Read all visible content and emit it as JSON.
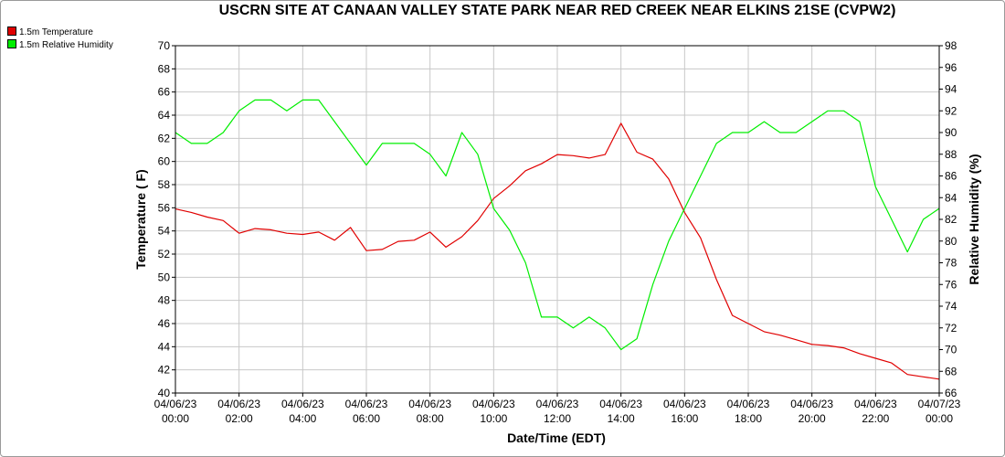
{
  "chart_data": {
    "type": "line",
    "title": "USCRN SITE AT CANAAN VALLEY STATE PARK NEAR RED CREEK NEAR ELKINS 21SE (CVPW2)",
    "xlabel": "Date/Time (EDT)",
    "ylabel_left": "Temperature ( F)",
    "ylabel_right": "Relative Humidity (%)",
    "xlim_hours": [
      0,
      24
    ],
    "x_ticks": [
      {
        "date": "04/06/23",
        "time": "00:00"
      },
      {
        "date": "04/06/23",
        "time": "02:00"
      },
      {
        "date": "04/06/23",
        "time": "04:00"
      },
      {
        "date": "04/06/23",
        "time": "06:00"
      },
      {
        "date": "04/06/23",
        "time": "08:00"
      },
      {
        "date": "04/06/23",
        "time": "10:00"
      },
      {
        "date": "04/06/23",
        "time": "12:00"
      },
      {
        "date": "04/06/23",
        "time": "14:00"
      },
      {
        "date": "04/06/23",
        "time": "16:00"
      },
      {
        "date": "04/06/23",
        "time": "18:00"
      },
      {
        "date": "04/06/23",
        "time": "20:00"
      },
      {
        "date": "04/06/23",
        "time": "22:00"
      },
      {
        "date": "04/07/23",
        "time": "00:00"
      }
    ],
    "ylim_left": [
      40,
      70
    ],
    "yticks_left": [
      "40",
      "42",
      "44",
      "46",
      "48",
      "50",
      "52",
      "54",
      "56",
      "58",
      "60",
      "62",
      "64",
      "66",
      "68",
      "70"
    ],
    "ylim_right": [
      66,
      98
    ],
    "yticks_right": [
      "66",
      "68",
      "70",
      "72",
      "74",
      "76",
      "78",
      "80",
      "82",
      "84",
      "86",
      "88",
      "90",
      "92",
      "94",
      "96",
      "98"
    ],
    "grid": true,
    "legend_position": "top-left",
    "series": [
      {
        "name": "1.5m Temperature",
        "axis": "left",
        "color": "#e00000",
        "x": [
          "00:00",
          "00:30",
          "01:00",
          "01:30",
          "02:00",
          "02:30",
          "03:00",
          "03:30",
          "04:00",
          "04:30",
          "05:00",
          "05:30",
          "06:00",
          "06:30",
          "07:00",
          "07:30",
          "08:00",
          "08:30",
          "09:00",
          "09:30",
          "10:00",
          "10:30",
          "11:00",
          "11:30",
          "12:00",
          "12:30",
          "13:00",
          "13:30",
          "14:00",
          "14:30",
          "15:00",
          "15:30",
          "16:00",
          "16:30",
          "17:00",
          "17:30",
          "18:00",
          "18:30",
          "19:00",
          "19:30",
          "20:00",
          "20:30",
          "21:00",
          "21:30",
          "22:00",
          "22:30",
          "23:00",
          "23:30",
          "24:00"
        ],
        "values": [
          55.9,
          55.6,
          55.2,
          54.9,
          53.8,
          54.2,
          54.1,
          53.8,
          53.7,
          53.9,
          53.2,
          54.3,
          52.3,
          52.4,
          53.1,
          53.2,
          53.9,
          52.6,
          53.5,
          54.9,
          56.8,
          57.9,
          59.2,
          59.8,
          60.6,
          60.5,
          60.3,
          60.6,
          63.3,
          60.8,
          60.2,
          58.5,
          55.6,
          53.4,
          49.8,
          46.7,
          46.0,
          45.3,
          45.0,
          44.6,
          44.2,
          44.1,
          43.9,
          43.4,
          43.0,
          42.6,
          41.6,
          41.4,
          41.2
        ]
      },
      {
        "name": "1.5m Relative Humidity",
        "axis": "right",
        "color": "#00ee00",
        "x": [
          "00:00",
          "00:30",
          "01:00",
          "01:30",
          "02:00",
          "02:30",
          "03:00",
          "03:30",
          "04:00",
          "04:30",
          "05:00",
          "05:30",
          "06:00",
          "06:30",
          "07:00",
          "07:30",
          "08:00",
          "08:30",
          "09:00",
          "09:30",
          "10:00",
          "10:30",
          "11:00",
          "11:30",
          "12:00",
          "12:30",
          "13:00",
          "13:30",
          "14:00",
          "14:30",
          "15:00",
          "15:30",
          "16:00",
          "16:30",
          "17:00",
          "17:30",
          "18:00",
          "18:30",
          "19:00",
          "19:30",
          "20:00",
          "20:30",
          "21:00",
          "21:30",
          "22:00",
          "22:30",
          "23:00",
          "23:30",
          "24:00"
        ],
        "values": [
          90,
          89,
          89,
          90,
          92,
          93,
          93,
          92,
          93,
          93,
          91,
          89,
          87,
          89,
          89,
          89,
          88,
          86,
          90,
          88,
          83,
          81,
          78,
          73,
          73,
          72,
          73,
          72,
          70,
          71,
          76,
          80,
          83,
          86,
          89,
          90,
          90,
          91,
          90,
          90,
          91,
          92,
          92,
          91,
          85,
          82,
          79,
          82,
          83
        ]
      }
    ]
  }
}
